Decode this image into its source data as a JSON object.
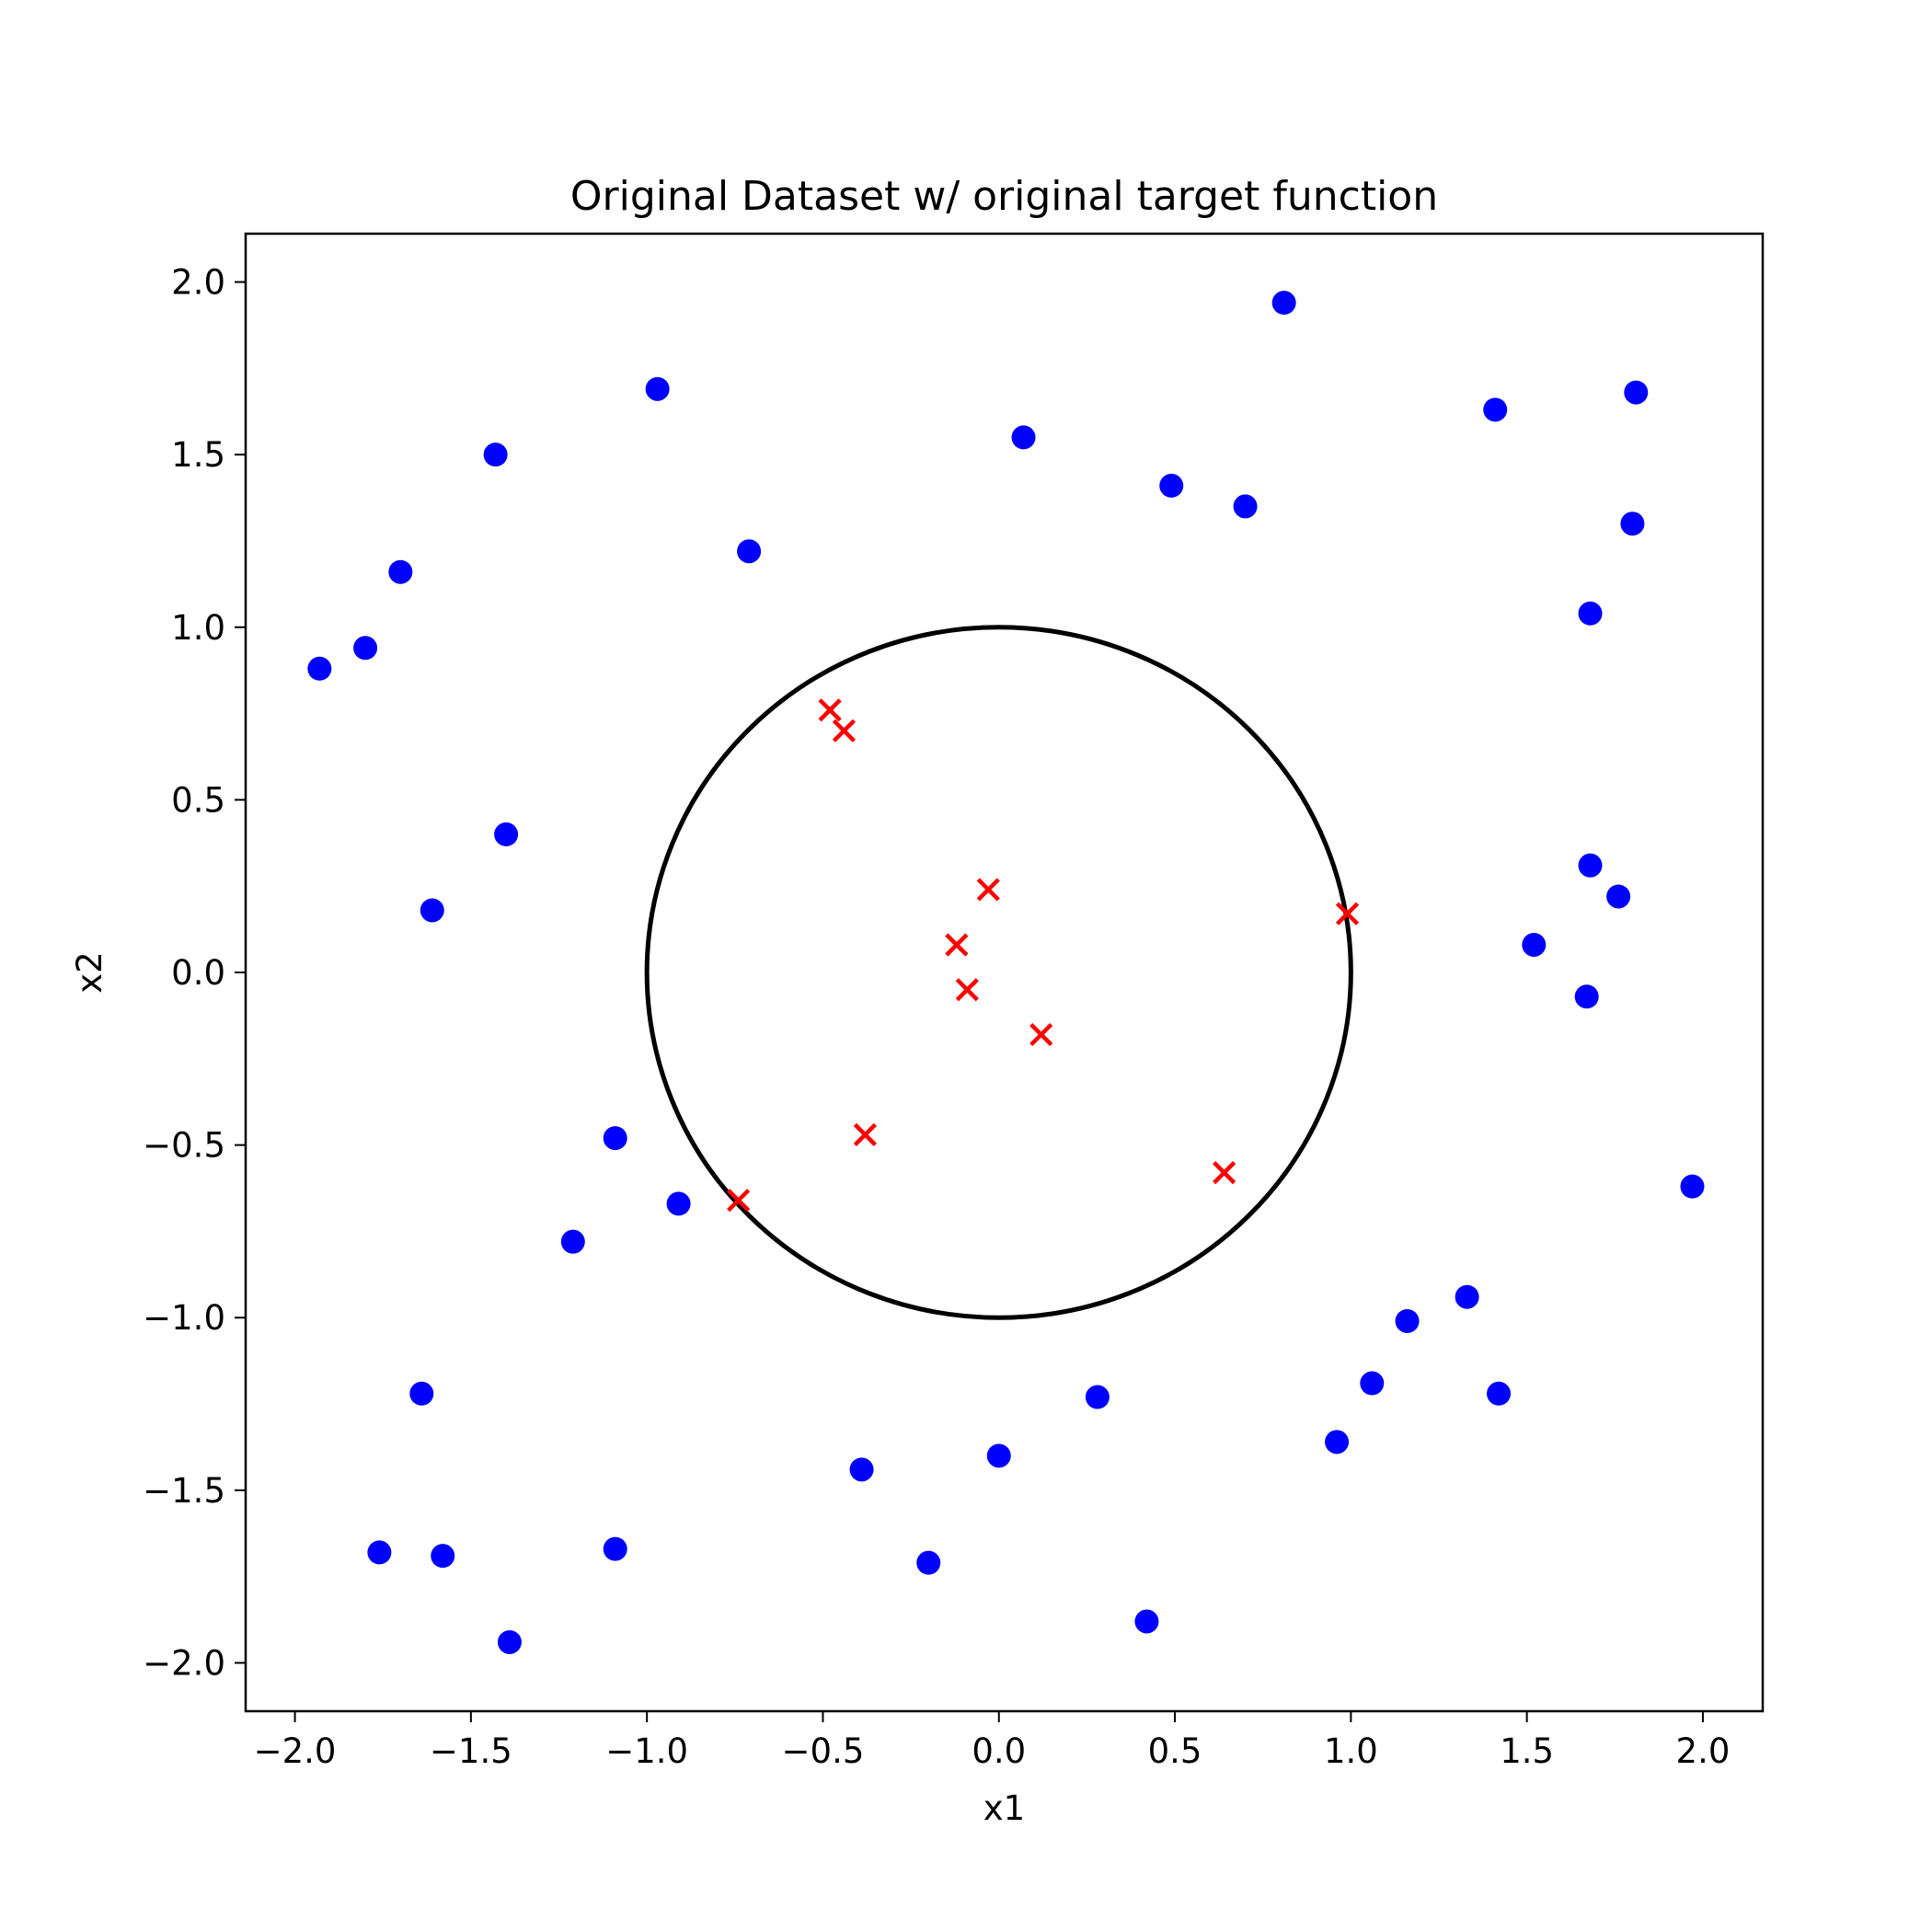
{
  "chart_data": {
    "type": "scatter",
    "title": "Original Dataset w/ original target function",
    "xlabel": "x1",
    "ylabel": "x2",
    "xlim": [
      -2.14,
      2.17
    ],
    "ylim": [
      -2.14,
      2.14
    ],
    "xticks": [
      -2.0,
      -1.5,
      -1.0,
      -0.5,
      0.0,
      0.5,
      1.0,
      1.5,
      2.0
    ],
    "yticks": [
      -2.0,
      -1.5,
      -1.0,
      -0.5,
      0.0,
      0.5,
      1.0,
      1.5,
      2.0
    ],
    "xtick_labels": [
      "−2.0",
      "−1.5",
      "−1.0",
      "−0.5",
      "0.0",
      "0.5",
      "1.0",
      "1.5",
      "2.0"
    ],
    "ytick_labels": [
      "−2.0",
      "−1.5",
      "−1.0",
      "−0.5",
      "0.0",
      "0.5",
      "1.0",
      "1.5",
      "2.0"
    ],
    "grid": false,
    "target_function": {
      "shape": "circle",
      "center": [
        0.0,
        0.0
      ],
      "radius": 1.0,
      "color": "#000000"
    },
    "series": [
      {
        "marker": "circle",
        "color": "#0000ff",
        "points": [
          [
            0.81,
            1.94
          ],
          [
            -0.97,
            1.69
          ],
          [
            1.41,
            1.63
          ],
          [
            1.81,
            1.68
          ],
          [
            0.07,
            1.55
          ],
          [
            -1.43,
            1.5
          ],
          [
            0.49,
            1.41
          ],
          [
            0.7,
            1.35
          ],
          [
            1.8,
            1.3
          ],
          [
            -0.71,
            1.22
          ],
          [
            -1.7,
            1.16
          ],
          [
            1.68,
            1.04
          ],
          [
            -1.8,
            0.94
          ],
          [
            -1.93,
            0.88
          ],
          [
            -1.4,
            0.4
          ],
          [
            -1.61,
            0.18
          ],
          [
            1.68,
            0.31
          ],
          [
            1.76,
            0.22
          ],
          [
            1.52,
            0.08
          ],
          [
            1.67,
            -0.07
          ],
          [
            -1.09,
            -0.48
          ],
          [
            -0.91,
            -0.67
          ],
          [
            -1.21,
            -0.78
          ],
          [
            1.97,
            -0.62
          ],
          [
            1.33,
            -0.94
          ],
          [
            1.16,
            -1.01
          ],
          [
            1.06,
            -1.19
          ],
          [
            1.42,
            -1.22
          ],
          [
            0.28,
            -1.23
          ],
          [
            0.96,
            -1.36
          ],
          [
            -1.64,
            -1.22
          ],
          [
            -0.39,
            -1.44
          ],
          [
            0.0,
            -1.4
          ],
          [
            -1.76,
            -1.68
          ],
          [
            -1.58,
            -1.69
          ],
          [
            -1.09,
            -1.67
          ],
          [
            -0.2,
            -1.71
          ],
          [
            0.42,
            -1.88
          ],
          [
            -1.39,
            -1.94
          ]
        ]
      },
      {
        "marker": "x",
        "color": "#ff0000",
        "points": [
          [
            -0.48,
            0.76
          ],
          [
            -0.44,
            0.7
          ],
          [
            -0.03,
            0.24
          ],
          [
            -0.12,
            0.08
          ],
          [
            -0.09,
            -0.05
          ],
          [
            0.12,
            -0.18
          ],
          [
            0.99,
            0.17
          ],
          [
            -0.38,
            -0.47
          ],
          [
            0.64,
            -0.58
          ],
          [
            -0.74,
            -0.66
          ]
        ]
      }
    ]
  }
}
